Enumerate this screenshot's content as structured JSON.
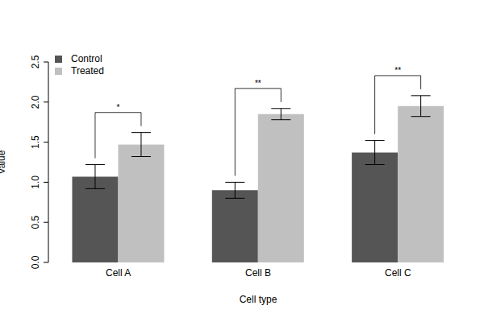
{
  "chart_data": {
    "type": "bar",
    "x_label": "Cell type",
    "y_label": "Value",
    "categories": [
      "Cell A",
      "Cell B",
      "Cell C"
    ],
    "series": [
      {
        "name": "Control",
        "color": "#555555",
        "values": [
          1.07,
          0.9,
          1.37
        ],
        "errors": [
          0.15,
          0.1,
          0.15
        ]
      },
      {
        "name": "Treated",
        "color": "#c0c0c0",
        "values": [
          1.47,
          1.85,
          1.95
        ],
        "errors": [
          0.15,
          0.07,
          0.13
        ]
      }
    ],
    "ylim": [
      0,
      2.5
    ],
    "yticks": [
      {
        "value": 0,
        "label": "0.0"
      },
      0.5,
      {
        "value": 1,
        "label": "1.0"
      },
      1.5,
      {
        "value": 2,
        "label": "2.0"
      },
      2.5
    ],
    "annotations": [
      "*",
      "**",
      "**"
    ],
    "legend": "top-left",
    "grid": false
  }
}
